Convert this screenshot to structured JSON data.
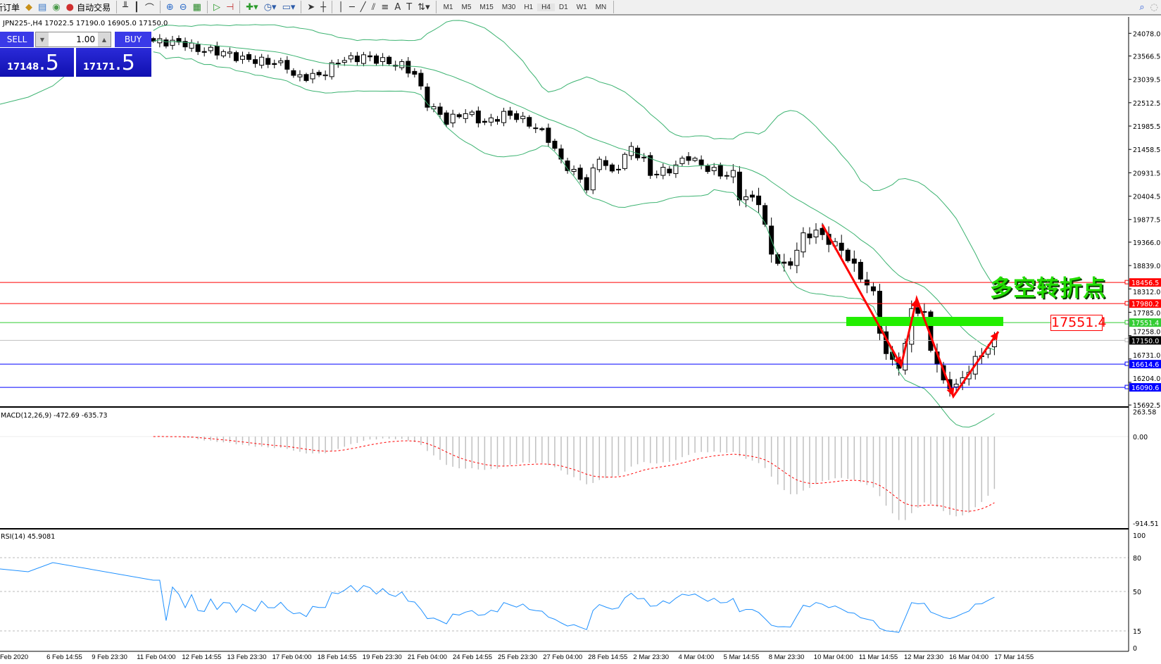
{
  "toolbar": {
    "new_order": "新订单",
    "auto_trading": "自动交易",
    "timeframes": [
      "M1",
      "M5",
      "M15",
      "M30",
      "H1",
      "H4",
      "D1",
      "W1",
      "MN"
    ],
    "active_timeframe": "H4",
    "icons": [
      "folder-icon",
      "profile-icon",
      "signal-icon",
      "auto-trading-icon",
      "bar-chart-icon",
      "candle-chart-icon",
      "line-chart-icon",
      "zoom-in-icon",
      "zoom-out-icon",
      "tile-icon",
      "autoscroll-icon",
      "chart-shift-icon",
      "indicators-icon",
      "periods-icon",
      "templates-icon",
      "cursor-icon",
      "crosshair-icon",
      "vertical-line-icon",
      "horizontal-line-icon",
      "trendline-icon",
      "channel-icon",
      "fibonacci-icon",
      "text-icon",
      "label-icon",
      "arrows-icon",
      "search-icon",
      "chat-icon"
    ]
  },
  "chart": {
    "title": "JPN225-,H4  17022.5 17190.0 16905.0 17150.0",
    "symbol": "JPN225-",
    "timeframe": "H4",
    "ohlc": {
      "open": 17022.5,
      "high": 17190.0,
      "low": 16905.0,
      "close": 17150.0
    }
  },
  "trade_panel": {
    "sell_label": "SELL",
    "buy_label": "BUY",
    "lot": "1.00",
    "sell_price_main": "17148",
    "sell_price_pip": ".5",
    "buy_price_main": "17171",
    "buy_price_pip": ".5",
    "color": "#2020d0"
  },
  "price_axis": {
    "ticks": [
      "24078.0",
      "23566.5",
      "23039.5",
      "22512.5",
      "21985.5",
      "21458.5",
      "20931.5",
      "20404.5",
      "19877.5",
      "19366.0",
      "18839.0",
      "18312.0",
      "17785.0",
      "17258.0",
      "16731.0",
      "16204.0",
      "15692.5"
    ],
    "range": [
      15692.5,
      24078.0
    ]
  },
  "levels": [
    {
      "price": 18456.5,
      "label": "18456.5",
      "color": "#ff0000"
    },
    {
      "price": 17980.2,
      "label": "17980.2",
      "color": "#ff0000"
    },
    {
      "price": 17551.4,
      "label": "17551.4",
      "color": "#33cc33"
    },
    {
      "price": 17150.0,
      "label": "17150.0",
      "color": "#000000",
      "line": "#c0c0c0"
    },
    {
      "price": 16614.6,
      "label": "16614.6",
      "color": "#0000ff"
    },
    {
      "price": 16090.6,
      "label": "16090.6",
      "color": "#0000ff"
    }
  ],
  "annotations": {
    "text": "多空转折点",
    "level_label": "17551.4",
    "text_color": "#22dd00",
    "arrow_color": "#ff0000",
    "zone_color": "#22ee00"
  },
  "chart_data": {
    "type": "candlestick",
    "indicators": [
      "Bollinger Bands(20,2)",
      "MACD(12,26,9)",
      "RSI(14)"
    ],
    "close_path": [
      [
        0,
        23900
      ],
      [
        5,
        23850
      ],
      [
        7,
        23700
      ],
      [
        11,
        23650
      ],
      [
        14,
        23500
      ],
      [
        17,
        23450
      ],
      [
        21,
        23350
      ],
      [
        22,
        23100
      ],
      [
        25,
        23100
      ],
      [
        27,
        23200
      ],
      [
        29,
        23450
      ],
      [
        33,
        23550
      ],
      [
        36,
        23450
      ],
      [
        39,
        23350
      ],
      [
        41,
        23150
      ],
      [
        43,
        22500
      ],
      [
        46,
        22100
      ],
      [
        49,
        22300
      ],
      [
        52,
        22050
      ],
      [
        55,
        22250
      ],
      [
        57,
        22200
      ],
      [
        60,
        21950
      ],
      [
        62,
        21700
      ],
      [
        64,
        21200
      ],
      [
        67,
        20800
      ],
      [
        68,
        20600
      ],
      [
        70,
        21300
      ],
      [
        72,
        20900
      ],
      [
        75,
        21500
      ],
      [
        77,
        21200
      ],
      [
        78,
        20900
      ],
      [
        81,
        21000
      ],
      [
        84,
        21300
      ],
      [
        86,
        21100
      ],
      [
        89,
        20900
      ],
      [
        91,
        20900
      ],
      [
        92,
        20400
      ],
      [
        95,
        20300
      ],
      [
        96,
        19700
      ],
      [
        97,
        19100
      ],
      [
        99,
        18800
      ],
      [
        100,
        18900
      ],
      [
        102,
        19500
      ],
      [
        104,
        19600
      ],
      [
        106,
        19400
      ],
      [
        108,
        19200
      ],
      [
        110,
        18800
      ],
      [
        113,
        18200
      ],
      [
        114,
        17400
      ],
      [
        115,
        16800
      ],
      [
        117,
        16600
      ],
      [
        118,
        17000
      ],
      [
        119,
        17900
      ],
      [
        121,
        17700
      ],
      [
        122,
        17000
      ],
      [
        124,
        16200
      ],
      [
        126,
        16100
      ],
      [
        127,
        16300
      ],
      [
        129,
        16700
      ],
      [
        132,
        17150
      ]
    ],
    "bands_color": "#3cb371"
  },
  "macd": {
    "label": "MACD(12,26,9) -472.69 -635.73",
    "ticks": [
      "263.58",
      "0.00",
      "-914.51"
    ],
    "hist_color": "#c0c0c0",
    "signal_color": "#ff0000"
  },
  "rsi": {
    "label": "RSI(14) 45.9081",
    "ticks": [
      "100",
      "80",
      "50",
      "15",
      "0"
    ],
    "levels": [
      80,
      50,
      15
    ],
    "color": "#1e90ff"
  },
  "time_axis": [
    "Feb 2020",
    "6 Feb 14:55",
    "9 Feb 23:30",
    "11 Feb 04:00",
    "12 Feb 14:55",
    "13 Feb 23:30",
    "17 Feb 04:00",
    "18 Feb 14:55",
    "19 Feb 23:30",
    "21 Feb 04:00",
    "24 Feb 14:55",
    "25 Feb 23:30",
    "27 Feb 04:00",
    "28 Feb 14:55",
    "2 Mar 23:30",
    "4 Mar 04:00",
    "5 Mar 14:55",
    "8 Mar 23:30",
    "10 Mar 04:00",
    "11 Mar 14:55",
    "12 Mar 23:30",
    "16 Mar 04:00",
    "17 Mar 14:55"
  ]
}
